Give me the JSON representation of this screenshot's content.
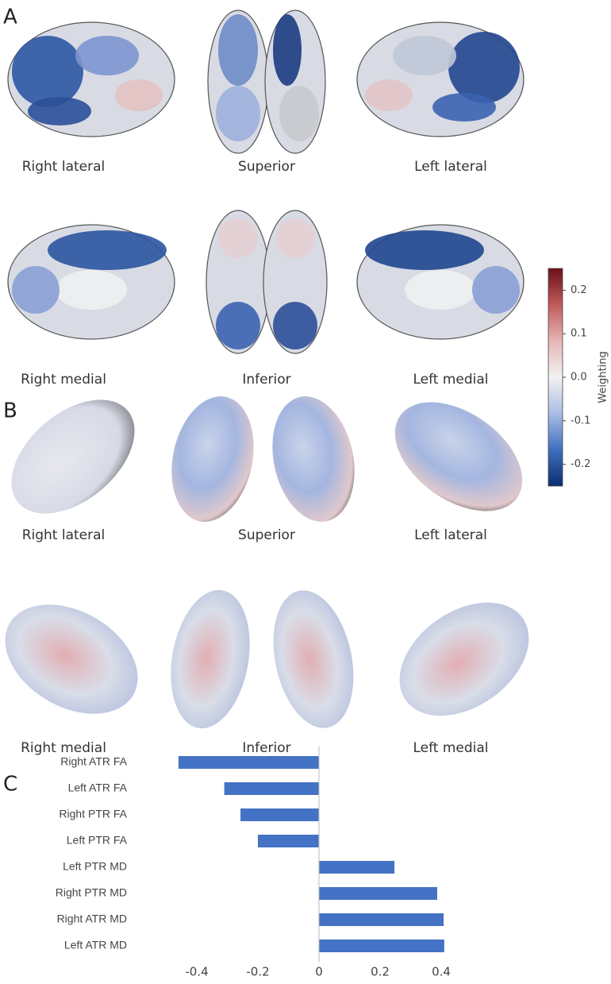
{
  "panels": [
    {
      "label": "A",
      "views": [
        "Right lateral",
        "Superior",
        "Left lateral",
        "Right medial",
        "Inferior",
        "Left medial"
      ]
    },
    {
      "label": "B",
      "views": [
        "Right lateral",
        "Superior",
        "Left lateral",
        "Right medial",
        "Inferior",
        "Left medial"
      ]
    },
    {
      "label": "C"
    }
  ],
  "chart_data": [
    {
      "type": "colorbar",
      "title": "Weighting",
      "colors": [
        "#0b2e6e",
        "#3f6fbf",
        "#a9bde3",
        "#f2f2f2",
        "#e7b5b5",
        "#c05a5a",
        "#6b0f18"
      ],
      "ylim": [
        -0.25,
        0.25
      ],
      "yticks": [
        -0.2,
        -0.1,
        {
          "value": 0,
          "label": "0.0"
        },
        0.1,
        0.2
      ]
    },
    {
      "type": "bar",
      "orientation": "horizontal",
      "color": "#4472c4",
      "categories": [
        "Right ATR FA",
        "Left ATR FA",
        "Right PTR FA",
        "Left PTR FA",
        "Left PTR MD",
        "Right PTR MD",
        "Right ATR MD",
        "Left ATR MD"
      ],
      "values": [
        -0.46,
        -0.31,
        -0.257,
        -0.2,
        0.247,
        0.387,
        0.408,
        0.41
      ],
      "xlim": [
        -0.5,
        0.45
      ],
      "xticks": [
        -0.4,
        -0.2,
        0,
        0.2,
        0.4
      ]
    }
  ]
}
